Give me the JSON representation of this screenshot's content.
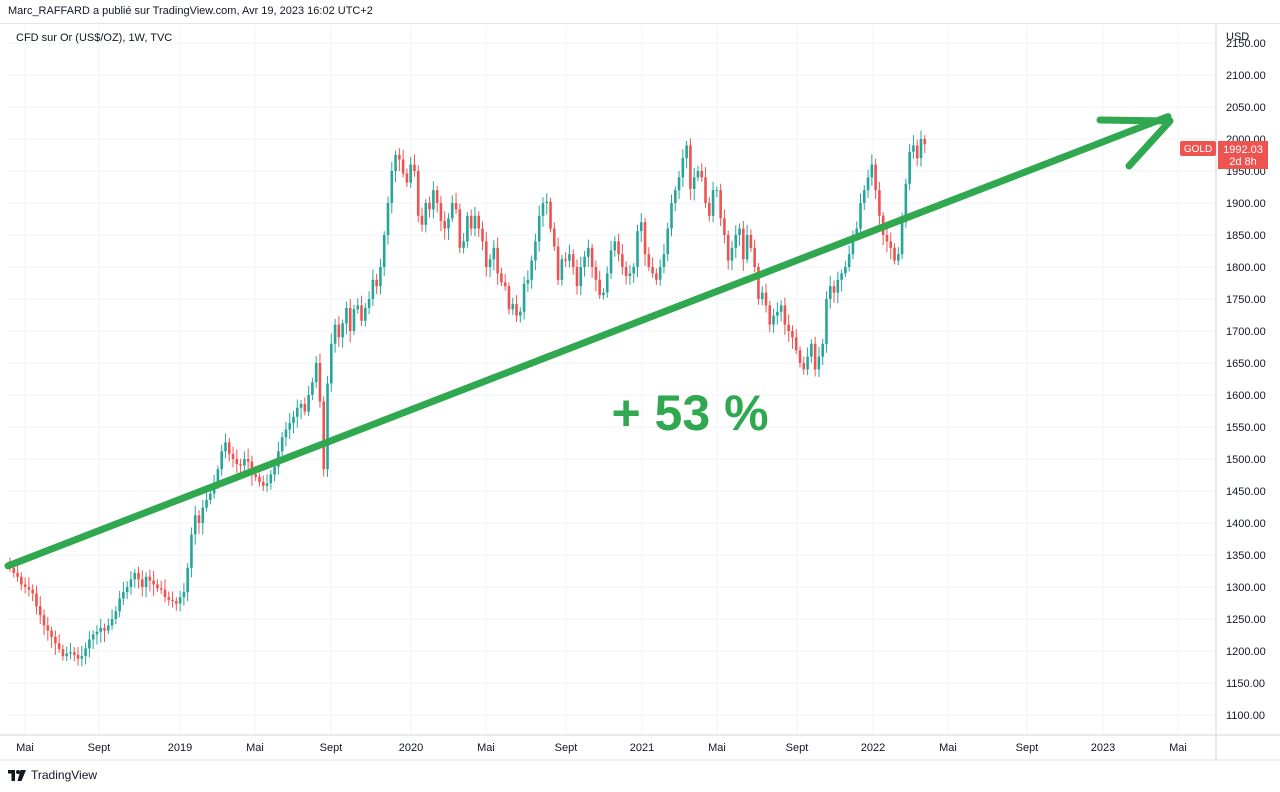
{
  "header": {
    "published_by": "Marc_RAFFARD a publié sur TradingView.com, Avr 19, 2023 16:02 UTC+2"
  },
  "symbol": {
    "description": "CFD sur Or (US$/OZ), 1W, TVC"
  },
  "price_scale": {
    "currency": "USD",
    "last_price_tag": "GOLD",
    "last_price": "1992.03",
    "countdown": "2d 8h"
  },
  "annotation": {
    "text": "+ 53 %",
    "color": "#2fa84f"
  },
  "footer": {
    "brand": "TradingView"
  },
  "colors": {
    "up": "#26a69a",
    "down": "#ef5350",
    "price_tag": "#ef5350",
    "arrow": "#2fa84f",
    "grid": "#f0f3fa"
  },
  "chart_data": {
    "type": "candlestick",
    "timeframe": "1W",
    "ylim": [
      1080,
      2160
    ],
    "y_ticks": [
      1100,
      1150,
      1200,
      1250,
      1300,
      1350,
      1400,
      1450,
      1500,
      1550,
      1600,
      1650,
      1700,
      1750,
      1800,
      1850,
      1900,
      1950,
      2000,
      2050,
      2100,
      2150
    ],
    "x_labels": [
      "Mai",
      "Sept",
      "2019",
      "Mai",
      "Sept",
      "2020",
      "Mai",
      "Sept",
      "2021",
      "Mai",
      "Sept",
      "2022",
      "Mai",
      "Sept",
      "2023",
      "Mai"
    ],
    "trend_arrow": {
      "from": {
        "date": "2018-04-16",
        "price": 1333
      },
      "to": {
        "date": "2023-05-01",
        "price": 2035
      }
    },
    "weekly_close": [
      1330,
      1322,
      1316,
      1304,
      1300,
      1296,
      1290,
      1270,
      1256,
      1240,
      1232,
      1222,
      1212,
      1203,
      1192,
      1196,
      1198,
      1194,
      1188,
      1192,
      1204,
      1218,
      1226,
      1230,
      1236,
      1232,
      1240,
      1250,
      1262,
      1282,
      1292,
      1300,
      1312,
      1322,
      1312,
      1300,
      1316,
      1310,
      1304,
      1298,
      1296,
      1284,
      1280,
      1278,
      1274,
      1284,
      1292,
      1330,
      1382,
      1412,
      1400,
      1424,
      1436,
      1446,
      1462,
      1484,
      1512,
      1526,
      1508,
      1500,
      1492,
      1490,
      1500,
      1496,
      1476,
      1472,
      1464,
      1458,
      1462,
      1476,
      1488,
      1512,
      1534,
      1546,
      1556,
      1566,
      1580,
      1586,
      1574,
      1600,
      1620,
      1650,
      1590,
      1484,
      1618,
      1680,
      1710,
      1690,
      1712,
      1736,
      1700,
      1734,
      1740,
      1716,
      1736,
      1750,
      1780,
      1770,
      1800,
      1850,
      1900,
      1950,
      1975,
      1968,
      1946,
      1932,
      1960,
      1950,
      1880,
      1866,
      1900,
      1890,
      1920,
      1900,
      1872,
      1860,
      1876,
      1900,
      1890,
      1830,
      1840,
      1880,
      1860,
      1880,
      1860,
      1840,
      1800,
      1812,
      1830,
      1790,
      1776,
      1770,
      1734,
      1742,
      1724,
      1730,
      1774,
      1780,
      1810,
      1840,
      1880,
      1900,
      1902,
      1860,
      1832,
      1780,
      1812,
      1810,
      1820,
      1800,
      1770,
      1800,
      1816,
      1830,
      1800,
      1780,
      1756,
      1760,
      1790,
      1826,
      1840,
      1820,
      1800,
      1786,
      1790,
      1800,
      1856,
      1870,
      1820,
      1800,
      1790,
      1780,
      1800,
      1820,
      1860,
      1900,
      1920,
      1940,
      1970,
      1990,
      1922,
      1940,
      1950,
      1940,
      1900,
      1880,
      1920,
      1920,
      1876,
      1850,
      1810,
      1830,
      1850,
      1860,
      1812,
      1850,
      1830,
      1800,
      1750,
      1760,
      1740,
      1710,
      1724,
      1730,
      1740,
      1710,
      1700,
      1690,
      1670,
      1650,
      1640,
      1660,
      1680,
      1640,
      1660,
      1680,
      1750,
      1770,
      1760,
      1780,
      1790,
      1800,
      1820,
      1850,
      1860,
      1900,
      1920,
      1940,
      1960,
      1920,
      1880,
      1850,
      1840,
      1830,
      1810,
      1820,
      1870,
      1930,
      1980,
      1990,
      1970,
      2000,
      1992
    ]
  }
}
